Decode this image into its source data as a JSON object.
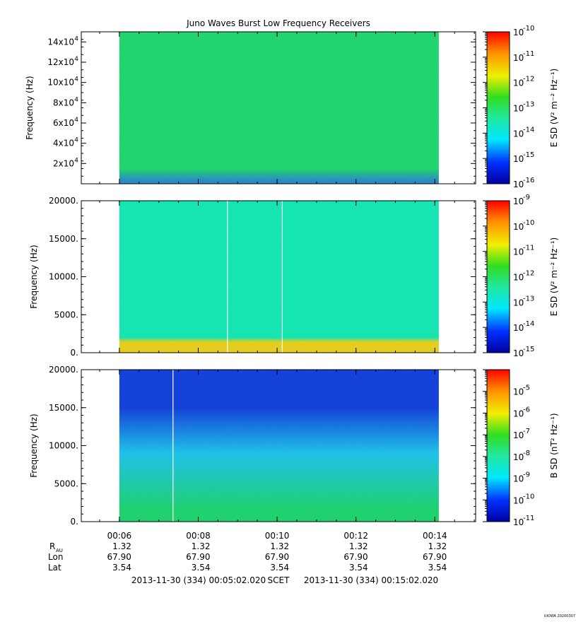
{
  "title": "Juno Waves Burst Low Frequency Receivers",
  "chart_data": [
    {
      "type": "heatmap",
      "ylabel": "Frequency (Hz)",
      "y_ticks": [
        {
          "value": 20000,
          "label": "2x10",
          "exp": "4"
        },
        {
          "value": 40000,
          "label": "4x10",
          "exp": "4"
        },
        {
          "value": 60000,
          "label": "6x10",
          "exp": "4"
        },
        {
          "value": 80000,
          "label": "8x10",
          "exp": "4"
        },
        {
          "value": 100000,
          "label": "10x10",
          "exp": "4"
        },
        {
          "value": 120000,
          "label": "12x10",
          "exp": "4"
        },
        {
          "value": 140000,
          "label": "14x10",
          "exp": "4"
        }
      ],
      "ylim": [
        0,
        150000
      ],
      "colorbar_label": "E SD (V² m⁻² Hz⁻¹)",
      "colorbar_range_exp": [
        -16,
        -10
      ],
      "colorbar_ticks": [
        "-10",
        "-11",
        "-12",
        "-13",
        "-14",
        "-15",
        "-16"
      ],
      "background_color": "#22d870",
      "low_band_color": "#2a8cc8",
      "data_gaps_minutes": []
    },
    {
      "type": "heatmap",
      "ylabel": "Frequency (Hz)",
      "y_ticks": [
        {
          "value": 0,
          "label": "0."
        },
        {
          "value": 5000,
          "label": "5000."
        },
        {
          "value": 10000,
          "label": "10000."
        },
        {
          "value": 15000,
          "label": "15000."
        },
        {
          "value": 20000,
          "label": "20000."
        }
      ],
      "ylim": [
        0,
        20000
      ],
      "colorbar_label": "E SD (V² m⁻² Hz⁻¹)",
      "colorbar_range_exp": [
        -15,
        -9
      ],
      "colorbar_ticks": [
        "-9",
        "-10",
        "-11",
        "-12",
        "-13",
        "-14",
        "-15"
      ],
      "background_color": "#16e8b4",
      "low_band_color": "#e8d020",
      "data_gaps_minutes": [
        8.74,
        10.13
      ]
    },
    {
      "type": "heatmap",
      "ylabel": "Frequency (Hz)",
      "y_ticks": [
        {
          "value": 0,
          "label": "0."
        },
        {
          "value": 5000,
          "label": "5000."
        },
        {
          "value": 10000,
          "label": "10000."
        },
        {
          "value": 15000,
          "label": "15000."
        },
        {
          "value": 20000,
          "label": "20000."
        }
      ],
      "ylim": [
        0,
        20000
      ],
      "colorbar_label": "B SD (nT² Hz⁻¹)",
      "colorbar_range_exp": [
        -11,
        -4
      ],
      "colorbar_ticks": [
        "-5",
        "-6",
        "-7",
        "-8",
        "-9",
        "-10",
        "-11"
      ],
      "background_color": "#1444e0",
      "low_band_color": "#20d870",
      "data_gaps_minutes": [
        7.36
      ]
    }
  ],
  "x_axis": {
    "ticks": [
      {
        "minute": 6,
        "label": "00:06"
      },
      {
        "minute": 8,
        "label": "00:08"
      },
      {
        "minute": 10,
        "label": "00:10"
      },
      {
        "minute": 12,
        "label": "00:12"
      },
      {
        "minute": 14,
        "label": "00:14"
      }
    ],
    "xlim_minutes": [
      5.034,
      15.034
    ],
    "data_range_minutes": [
      6.0,
      14.1
    ]
  },
  "ephemeris": {
    "labels": [
      "R",
      "Lon",
      "Lat"
    ],
    "r_subscript": "AU",
    "rows": [
      [
        "1.32",
        "1.32",
        "1.32",
        "1.32",
        "1.32"
      ],
      [
        "67.90",
        "67.90",
        "67.90",
        "67.90",
        "67.90"
      ],
      [
        "3.54",
        "3.54",
        "3.54",
        "3.54",
        "3.54"
      ]
    ]
  },
  "footer": {
    "start": "2013-11-30 (334) 00:05:02.020",
    "scet": "SCET",
    "end": "2013-11-30 (334) 00:15:02.020"
  },
  "credit": "UIOWA 20200307"
}
